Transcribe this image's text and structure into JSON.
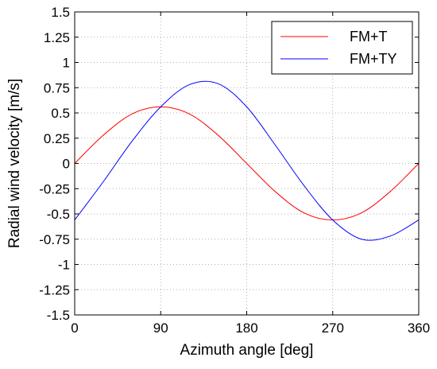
{
  "chart_data": {
    "type": "line",
    "title": "",
    "xlabel": "Azimuth angle [deg]",
    "ylabel": "Radial wind velocity [m/s]",
    "xlim": [
      0,
      360
    ],
    "ylim": [
      -1.5,
      1.5
    ],
    "xticks": [
      0,
      90,
      180,
      270,
      360
    ],
    "xtick_labels": [
      "0",
      "90",
      "180",
      "270",
      "360"
    ],
    "yticks": [
      1.5,
      1.25,
      1,
      0.75,
      0.5,
      0.25,
      0,
      -0.25,
      -0.5,
      -0.75,
      -1,
      -1.25,
      -1.5
    ],
    "ytick_labels": [
      "1.5",
      "1.25",
      "1",
      "0.75",
      "0.5",
      "0.25",
      "0",
      "-0.25",
      "-0.5",
      "-0.75",
      "-1",
      "-1.25",
      "-1.5"
    ],
    "grid": true,
    "legend_position": "top-right",
    "x": [
      0,
      30,
      60,
      90,
      120,
      150,
      180,
      210,
      240,
      270,
      300,
      330,
      360
    ],
    "series": [
      {
        "name": "FM+T",
        "color": "#ff0000",
        "values": [
          0.0,
          0.28,
          0.49,
          0.56,
          0.49,
          0.28,
          0.0,
          -0.28,
          -0.49,
          -0.56,
          -0.49,
          -0.28,
          0.0
        ]
      },
      {
        "name": "FM+TY",
        "color": "#0000ff",
        "values": [
          -0.56,
          -0.18,
          0.22,
          0.56,
          0.78,
          0.79,
          0.56,
          0.18,
          -0.22,
          -0.56,
          -0.75,
          -0.72,
          -0.56
        ]
      }
    ]
  }
}
